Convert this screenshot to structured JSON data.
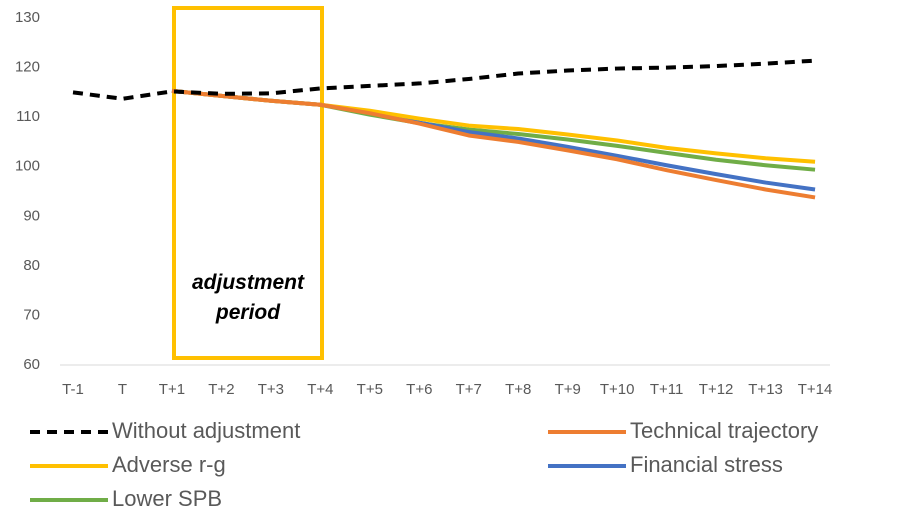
{
  "chart_data": {
    "type": "line",
    "annotation": "adjustment period",
    "categories": [
      "T-1",
      "T",
      "T+1",
      "T+2",
      "T+3",
      "T+4",
      "T+5",
      "T+6",
      "T+7",
      "T+8",
      "T+9",
      "T+10",
      "T+11",
      "T+12",
      "T+13",
      "T+14"
    ],
    "ylim": [
      60,
      130
    ],
    "yticks": [
      60,
      70,
      80,
      90,
      100,
      110,
      120,
      130
    ],
    "series": [
      {
        "name": "Without adjustment",
        "color": "#000000",
        "dashed": true,
        "values": [
          115,
          113.7,
          115.2,
          114.7,
          114.8,
          115.8,
          116.3,
          116.8,
          117.7,
          118.8,
          119.4,
          119.8,
          120,
          120.3,
          120.8,
          121.4
        ]
      },
      {
        "name": "Technical trajectory",
        "color": "#ed7d31",
        "values": [
          null,
          null,
          115.3,
          114.3,
          113.3,
          112.5,
          110.8,
          108.7,
          106.3,
          105,
          103.3,
          101.5,
          99.3,
          97.3,
          95.4,
          93.8
        ]
      },
      {
        "name": "Adverse r-g",
        "color": "#ffc000",
        "values": [
          null,
          null,
          115.3,
          114.3,
          113.3,
          112.5,
          111.3,
          109.7,
          108.3,
          107.6,
          106.5,
          105.3,
          103.8,
          102.7,
          101.7,
          101
        ]
      },
      {
        "name": "Financial stress",
        "color": "#4472c4",
        "values": [
          null,
          null,
          115.3,
          114.3,
          113.3,
          112.5,
          111,
          108.9,
          107,
          105.7,
          104,
          102.2,
          100.3,
          98.5,
          96.8,
          95.4
        ]
      },
      {
        "name": "Lower SPB",
        "color": "#70ad47",
        "values": [
          null,
          null,
          115.3,
          114.3,
          113.3,
          112.5,
          110.5,
          108.8,
          107.5,
          106.6,
          105.5,
          104.2,
          102.8,
          101.4,
          100.3,
          99.4
        ]
      }
    ]
  }
}
